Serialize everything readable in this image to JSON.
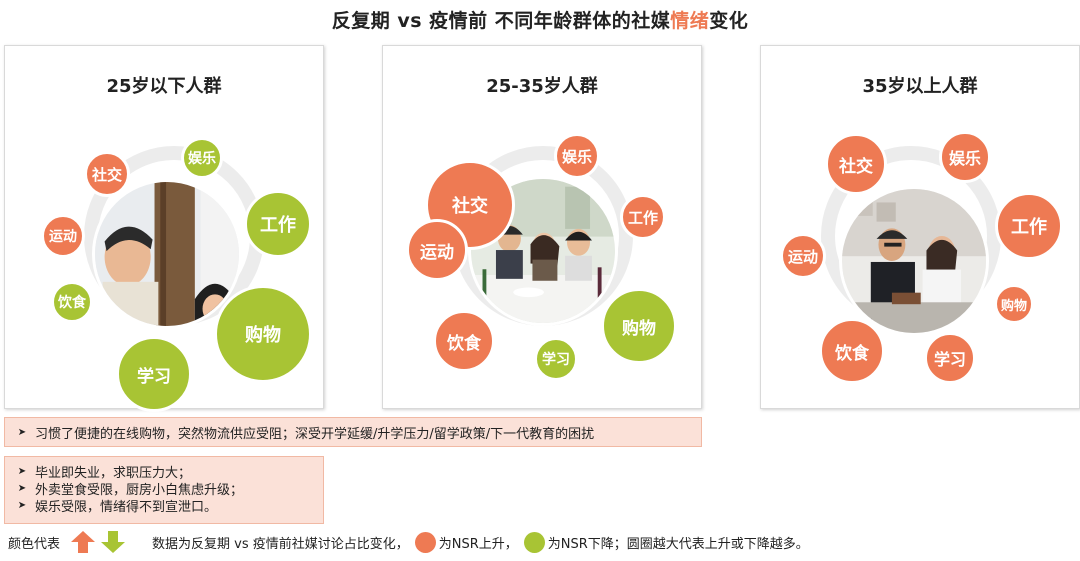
{
  "title": {
    "before": "反复期 vs 疫情前 不同年龄群体的社媒",
    "highlight": "情绪",
    "after": "变化"
  },
  "colors": {
    "up": "#ee7a53",
    "down": "#a8c434",
    "ring": "#ececec"
  },
  "panels": [
    {
      "title": "25岁以下人群",
      "bubbles": [
        {
          "label": "社交",
          "trend": "up"
        },
        {
          "label": "娱乐",
          "trend": "down"
        },
        {
          "label": "工作",
          "trend": "down"
        },
        {
          "label": "购物",
          "trend": "down"
        },
        {
          "label": "学习",
          "trend": "down"
        },
        {
          "label": "饮食",
          "trend": "down"
        },
        {
          "label": "运动",
          "trend": "up"
        }
      ]
    },
    {
      "title": "25-35岁人群",
      "bubbles": [
        {
          "label": "社交",
          "trend": "up"
        },
        {
          "label": "娱乐",
          "trend": "up"
        },
        {
          "label": "工作",
          "trend": "up"
        },
        {
          "label": "购物",
          "trend": "down"
        },
        {
          "label": "学习",
          "trend": "down"
        },
        {
          "label": "饮食",
          "trend": "up"
        },
        {
          "label": "运动",
          "trend": "up"
        }
      ]
    },
    {
      "title": "35岁以上人群",
      "bubbles": [
        {
          "label": "社交",
          "trend": "up"
        },
        {
          "label": "娱乐",
          "trend": "up"
        },
        {
          "label": "工作",
          "trend": "up"
        },
        {
          "label": "购物",
          "trend": "up"
        },
        {
          "label": "学习",
          "trend": "up"
        },
        {
          "label": "饮食",
          "trend": "up"
        },
        {
          "label": "运动",
          "trend": "up"
        }
      ]
    }
  ],
  "notes": {
    "wide": [
      "习惯了便捷的在线购物，突然物流供应受阻；深受开学延缓/升学压力/留学政策/下一代教育的困扰"
    ],
    "narrow": [
      "毕业即失业，求职压力大；",
      "外卖堂食受限，厨房小白焦虑升级；",
      "娱乐受限，情绪得不到宣泄口。"
    ]
  },
  "legend": {
    "label": "颜色代表",
    "desc": "数据为反复期 vs 疫情前社媒讨论占比变化，",
    "up_label": "为NSR上升，",
    "down_label": "为NSR下降；圆圈越大代表上升或下降越多。"
  }
}
